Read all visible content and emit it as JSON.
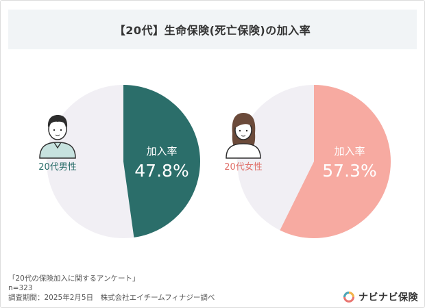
{
  "title": "【20代】生命保険(死亡保険)の加入率",
  "chart_data": [
    {
      "type": "pie",
      "label": "20代男性",
      "slice_label": "加入率",
      "value": 47.8,
      "value_text": "47.8%",
      "color": "#2b6e6a",
      "rest_color": "#f1eff4",
      "label_color": "#2b6e6a"
    },
    {
      "type": "pie",
      "label": "20代女性",
      "slice_label": "加入率",
      "value": 57.3,
      "value_text": "57.3%",
      "color": "#f7aaa1",
      "rest_color": "#f1eff4",
      "label_color": "#e0706a"
    }
  ],
  "footer": {
    "survey": "「20代の保険加入に関するアンケート」",
    "n": "n=323",
    "period": "調査期間：2025年2月5日　株式会社エイチームフィナジー調べ"
  },
  "logo": {
    "text": "ナビナビ保険"
  }
}
